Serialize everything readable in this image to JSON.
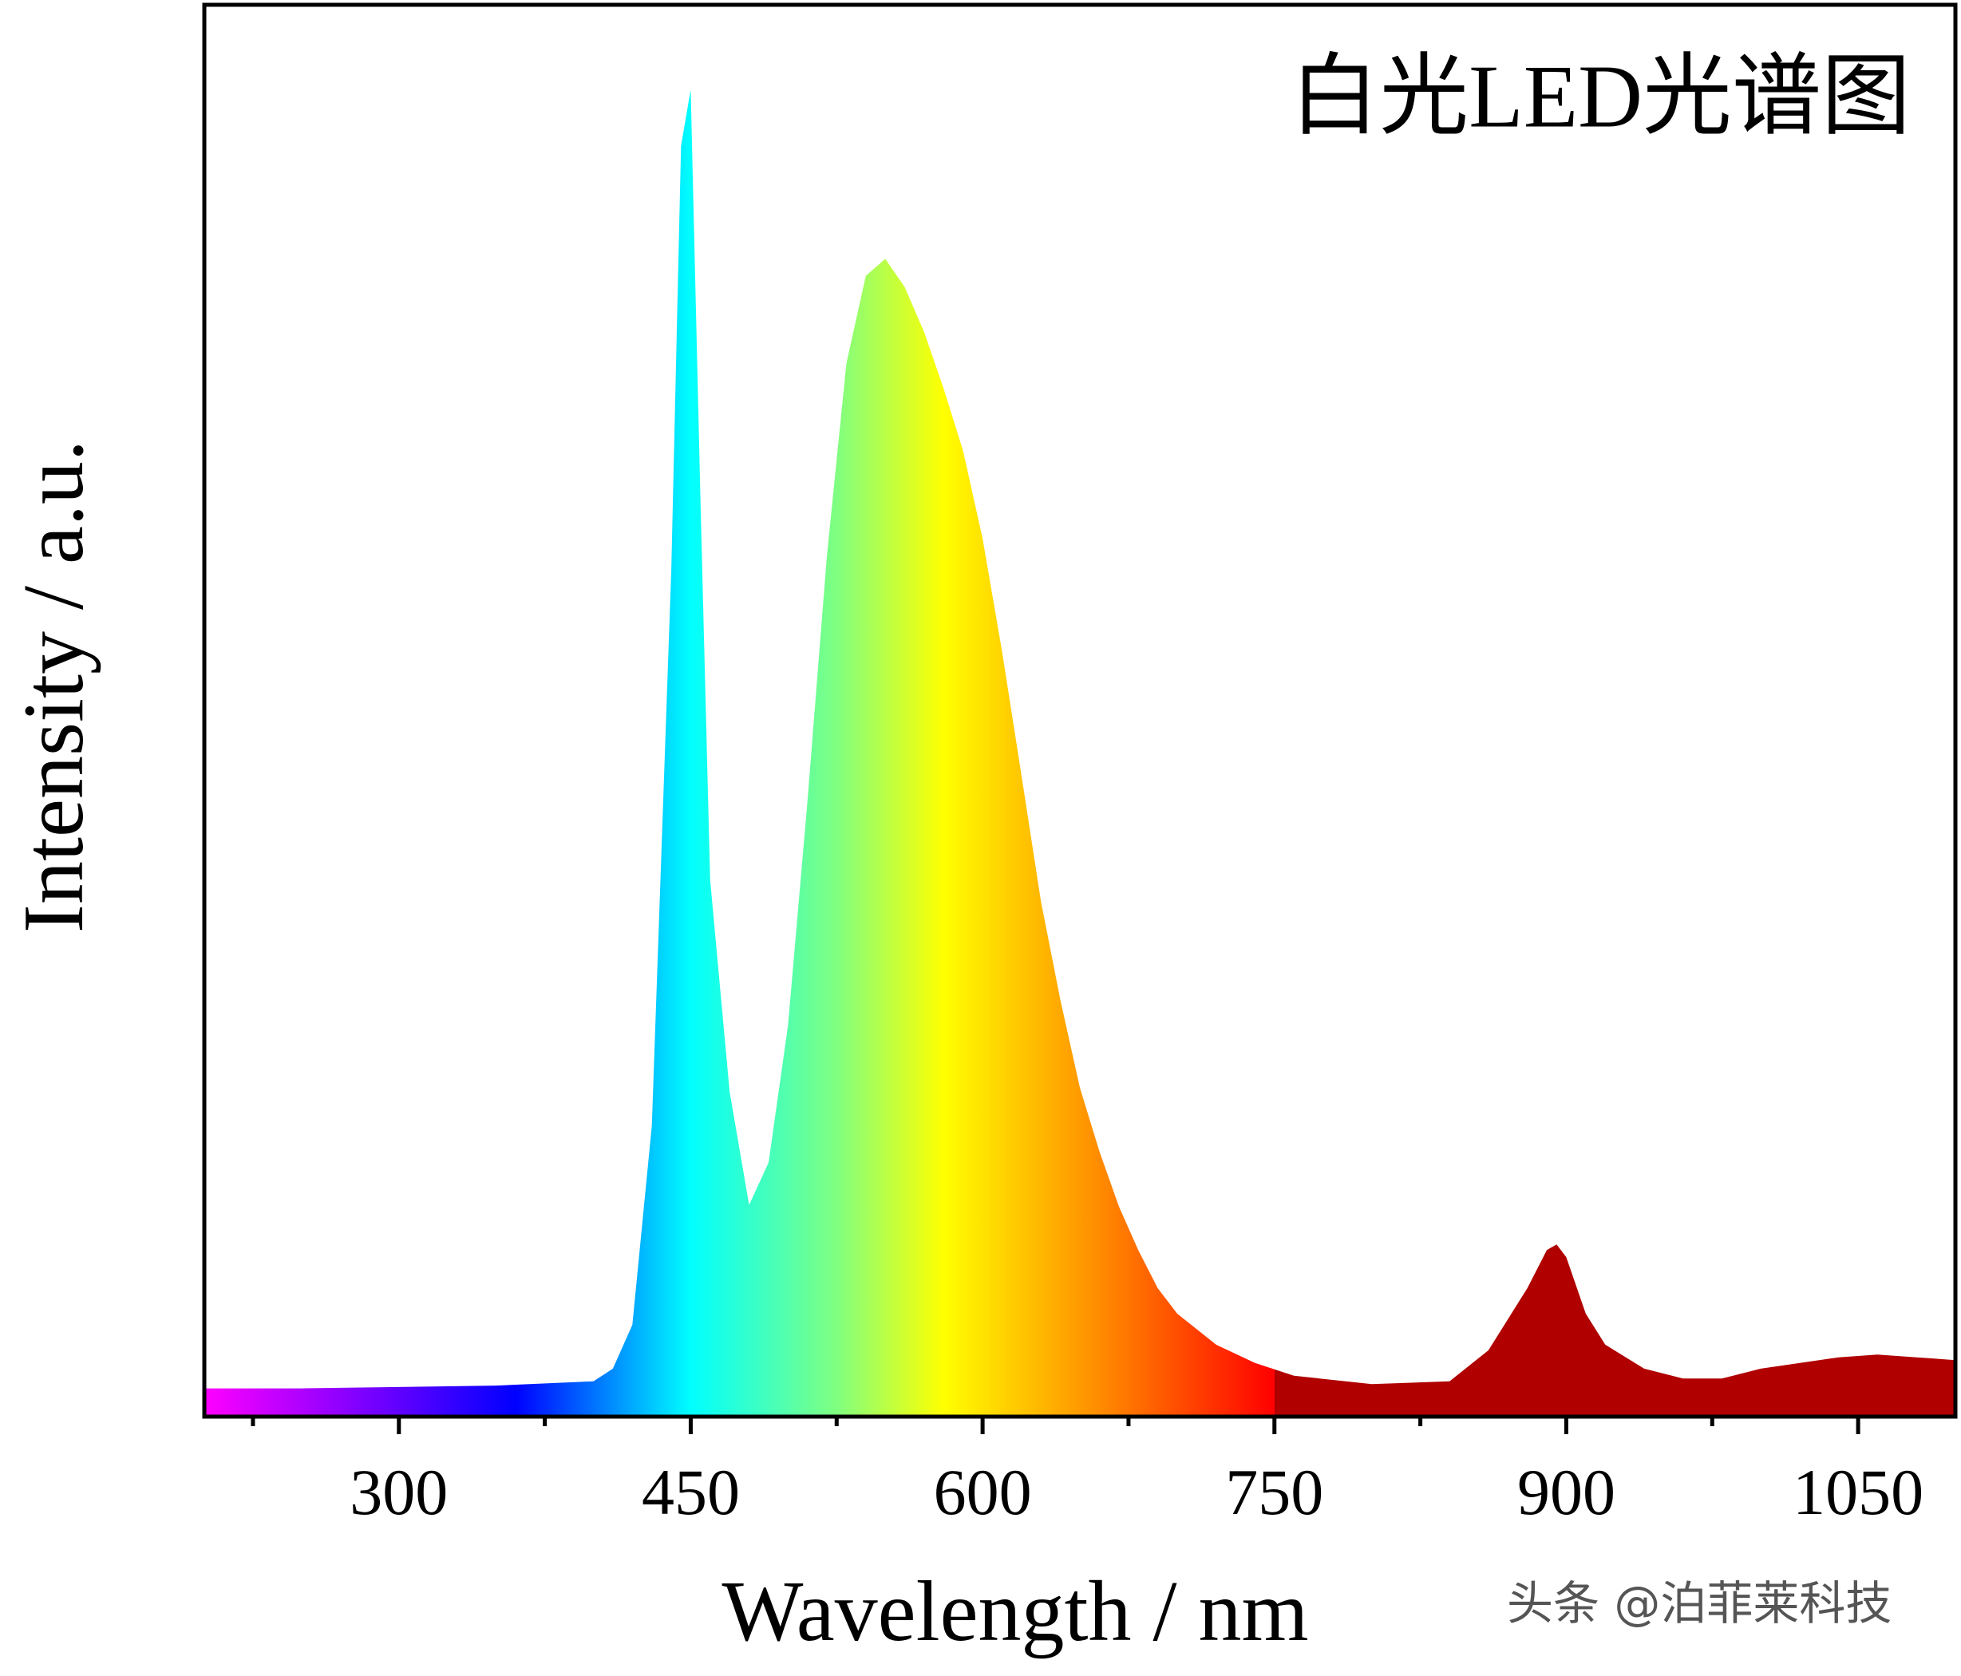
{
  "chart_data": {
    "type": "area",
    "title": "白光LED光谱图",
    "x_label": "Wavelength / nm",
    "y_label": "Intensity / a.u.",
    "watermark": "头条 @泊菲莱科技",
    "x": [
      200,
      250,
      300,
      350,
      400,
      410,
      420,
      430,
      440,
      445,
      450,
      455,
      460,
      470,
      480,
      490,
      500,
      510,
      520,
      530,
      540,
      550,
      560,
      570,
      580,
      590,
      600,
      610,
      620,
      630,
      640,
      650,
      660,
      670,
      680,
      690,
      700,
      720,
      740,
      760,
      800,
      840,
      860,
      880,
      890,
      895,
      900,
      910,
      920,
      940,
      960,
      980,
      1000,
      1040,
      1060,
      1080,
      1100
    ],
    "values": [
      2,
      2,
      2.1,
      2.2,
      2.5,
      3.4,
      6.5,
      20.6,
      60,
      90,
      94,
      65,
      38,
      23,
      15,
      18,
      27.7,
      43.6,
      61,
      74.6,
      80.8,
      82,
      80,
      76.8,
      72.8,
      68.4,
      62.2,
      54.2,
      45.4,
      36.5,
      29.5,
      23.3,
      18.8,
      14.9,
      11.8,
      9.1,
      7.3,
      5.1,
      3.8,
      2.9,
      2.3,
      2.5,
      4.7,
      9.1,
      11.8,
      12.2,
      11.3,
      7.3,
      5.1,
      3.4,
      2.7,
      2.7,
      3.4,
      4.2,
      4.4,
      4.2,
      4.0
    ],
    "color_stops": [
      {
        "value": 200,
        "color": "#ff00ff"
      },
      {
        "value": 360,
        "color": "#0000ff"
      },
      {
        "value": 450,
        "color": "#00ffff"
      },
      {
        "value": 525,
        "color": "#80ff80"
      },
      {
        "value": 580,
        "color": "#ffff00"
      },
      {
        "value": 660,
        "color": "#ff8c00"
      },
      {
        "value": 750,
        "color": "#ff0000"
      },
      {
        "value": 750,
        "color": "#b00000"
      },
      {
        "value": 1100,
        "color": "#b00000"
      }
    ],
    "xlim": [
      200,
      1100
    ],
    "ylim": [
      0,
      100
    ],
    "xticks": [
      300,
      450,
      600,
      750,
      900,
      1050
    ],
    "xminorticks": [
      225,
      375,
      525,
      675,
      825,
      975
    ]
  }
}
